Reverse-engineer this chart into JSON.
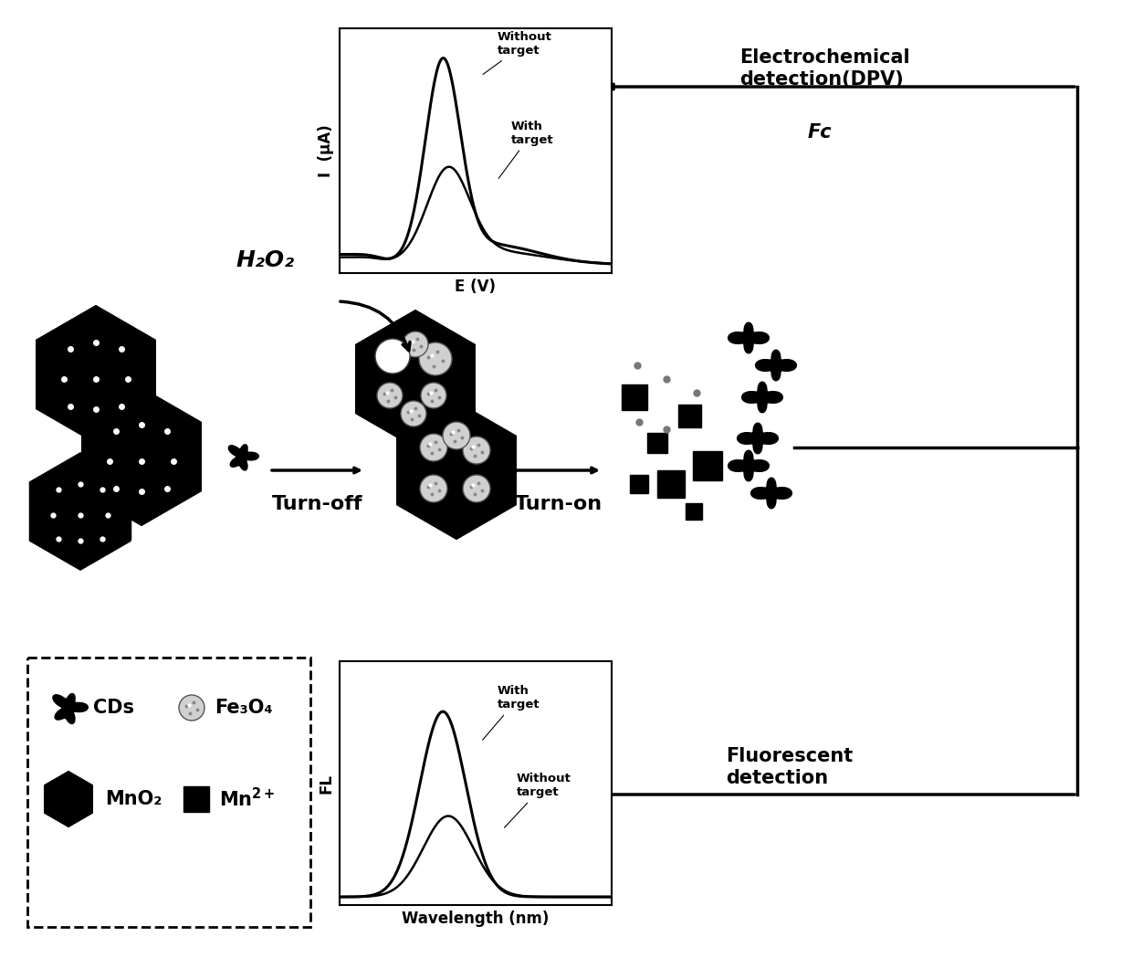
{
  "bg_color": "#ffffff",
  "fig_width": 12.4,
  "fig_height": 10.49,
  "echem_ylabel": "I  (μA)",
  "echem_xlabel": "E (V)",
  "echem_label_without": "Without\ntarget",
  "echem_label_with": "With\ntarget",
  "fl_ylabel": "FL",
  "fl_xlabel": "Wavelength (nm)",
  "fl_label_with": "With\ntarget",
  "fl_label_without": "Without\ntarget",
  "arrow_color": "#000000",
  "label_turnoff": "Turn-off",
  "label_turnon": "Turn-on",
  "label_h2o2": "H₂O₂",
  "label_echem_detection": "Electrochemical\ndetection(DPV)",
  "label_fc": "Fc",
  "label_fl_detection": "Fluorescent\ndetection",
  "legend_cds": "CDs",
  "legend_fe3o4": "Fe₃O₄",
  "legend_mno2": "MnO₂",
  "legend_mn2plus": "Mn²⁺"
}
